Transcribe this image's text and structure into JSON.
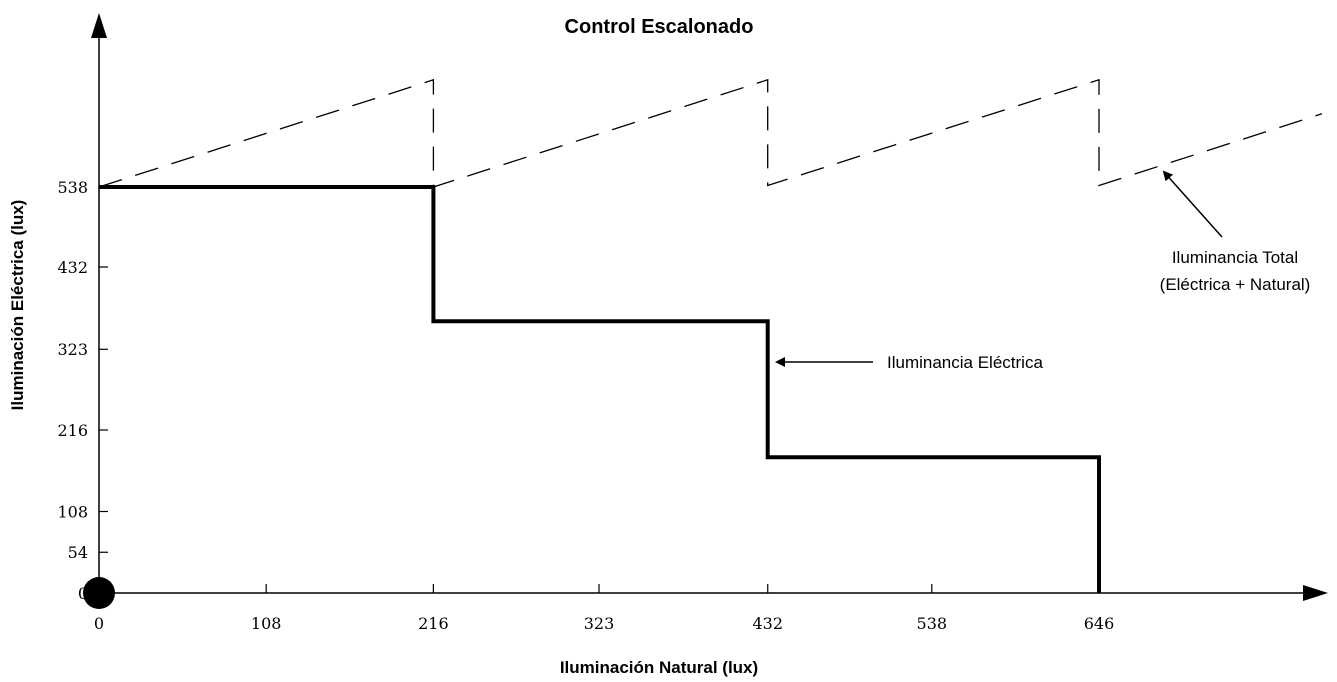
{
  "chart_data": {
    "type": "line",
    "title": "Control Escalonado",
    "xlabel": "Iluminación Natural (lux)",
    "ylabel": "Iluminación Eléctrica (lux)",
    "x_ticks": [
      0,
      108,
      216,
      323,
      432,
      538,
      646
    ],
    "y_ticks": [
      0,
      54,
      108,
      216,
      323,
      432,
      538
    ],
    "xlim": [
      0,
      780
    ],
    "ylim": [
      0,
      650
    ],
    "grid": false,
    "series": [
      {
        "name": "Iluminancia Eléctrica",
        "style": "solid",
        "step": true,
        "x": [
          0,
          216,
          216,
          432,
          432,
          646,
          646
        ],
        "y": [
          538,
          538,
          360,
          360,
          180,
          180,
          0
        ]
      },
      {
        "name": "Iluminancia Total (Eléctrica + Natural)",
        "style": "dashed",
        "x": [
          0,
          216,
          216,
          432,
          432,
          646,
          646,
          790
        ],
        "y": [
          538,
          680,
          538,
          680,
          540,
          680,
          540,
          635
        ]
      }
    ],
    "annotations": [
      {
        "line1": "Iluminancia Eléctrica"
      },
      {
        "line1": "Iluminancia Total",
        "line2": "(Eléctrica + Natural)"
      }
    ]
  }
}
